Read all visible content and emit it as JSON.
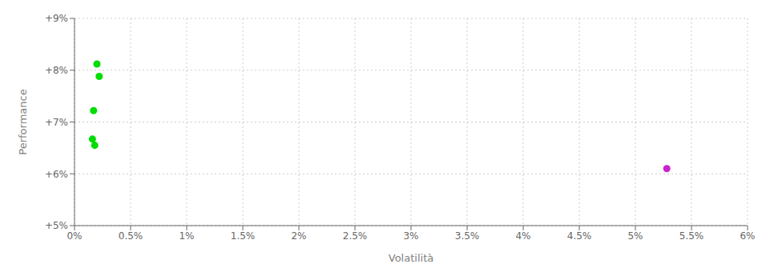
{
  "chart_data": {
    "type": "scatter",
    "xlabel": "Volatilità",
    "ylabel": "Performance",
    "xlim": [
      0,
      6
    ],
    "ylim": [
      5,
      9
    ],
    "xticks": [
      {
        "value": 0,
        "label": "0%"
      },
      {
        "value": 0.5,
        "label": "0.5%"
      },
      {
        "value": 1.0,
        "label": "1%"
      },
      {
        "value": 1.5,
        "label": "1.5%"
      },
      {
        "value": 2.0,
        "label": "2%"
      },
      {
        "value": 2.5,
        "label": "2.5%"
      },
      {
        "value": 3.0,
        "label": "3%"
      },
      {
        "value": 3.5,
        "label": "3.5%"
      },
      {
        "value": 4.0,
        "label": "4%"
      },
      {
        "value": 4.5,
        "label": "4.5%"
      },
      {
        "value": 5.0,
        "label": "5%"
      },
      {
        "value": 5.5,
        "label": "5.5%"
      },
      {
        "value": 6.0,
        "label": "6%"
      }
    ],
    "yticks": [
      {
        "value": 5,
        "label": "+5%"
      },
      {
        "value": 6,
        "label": "+6%"
      },
      {
        "value": 7,
        "label": "+7%"
      },
      {
        "value": 8,
        "label": "+8%"
      },
      {
        "value": 9,
        "label": "+9%"
      }
    ],
    "grid": true,
    "series": [
      {
        "color": "#00dd00",
        "x": [
          0.2,
          0.22,
          0.17,
          0.16,
          0.18
        ],
        "values": [
          8.12,
          7.88,
          7.22,
          6.67,
          6.55
        ]
      },
      {
        "color": "#cc22cc",
        "x": [
          5.28
        ],
        "values": [
          6.1
        ]
      }
    ]
  }
}
